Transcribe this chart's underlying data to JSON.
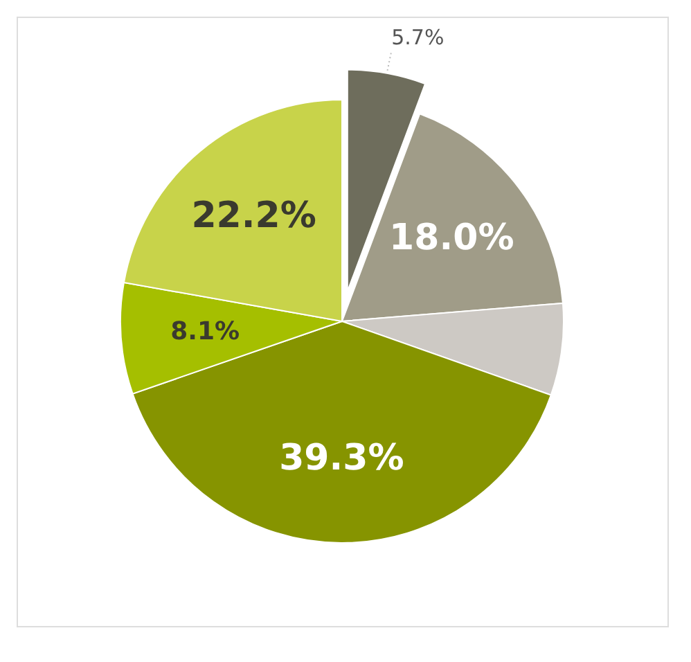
{
  "chart_data": {
    "type": "pie",
    "categories": [
      null,
      null,
      null,
      null,
      null,
      null
    ],
    "values": [
      5.7,
      18.0,
      6.7,
      39.3,
      8.1,
      22.2
    ],
    "colors": [
      "#6e6d5c",
      "#a09c88",
      "#cdc9c4",
      "#869400",
      "#a5bf00",
      "#c8d34a"
    ],
    "value_labels": [
      "5.7%",
      "18.0%",
      null,
      "39.3%",
      "8.1%",
      "22.2%"
    ]
  }
}
